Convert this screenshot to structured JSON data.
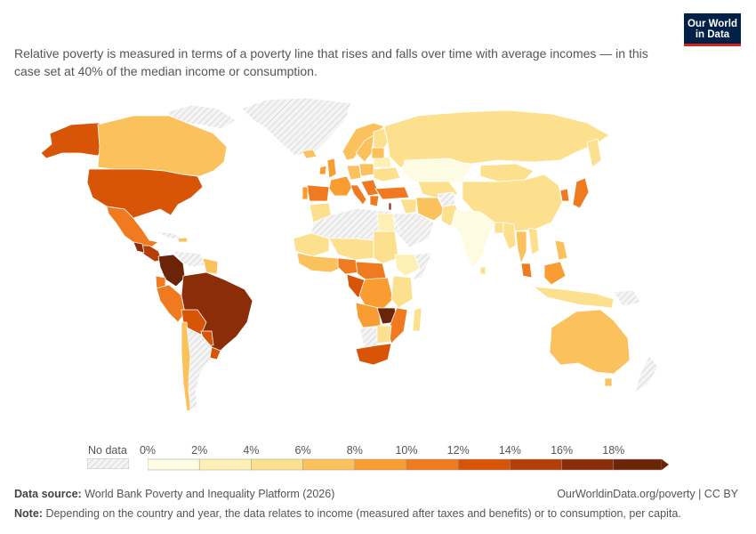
{
  "subtitle": "Relative poverty is measured in terms of a poverty line that rises and falls over time with average incomes — in this case set at 40% of the median income or consumption.",
  "logo": {
    "line1": "Our World",
    "line2": "in Data"
  },
  "legend": {
    "nodata_label": "No data",
    "ticks": [
      "0%",
      "2%",
      "4%",
      "6%",
      "8%",
      "10%",
      "12%",
      "14%",
      "16%",
      "18%"
    ],
    "colors": [
      "#fefbe3",
      "#fef0b4",
      "#fde08e",
      "#fbc15c",
      "#f99c32",
      "#ef7a1f",
      "#d85508",
      "#b43d08",
      "#8c2d09",
      "#6b2408"
    ]
  },
  "footer": {
    "source_label": "Data source:",
    "source_text": "World Bank Poverty and Inequality Platform (2026)",
    "link": "OurWorldinData.org/poverty | CC BY",
    "note_label": "Note:",
    "note_text": "Depending on the country and year, the data relates to income (measured after taxes and benefits) or to consumption, per capita."
  },
  "colors": {
    "nodata_hatch": "#d9d9d9",
    "border": "#ffffff",
    "brand": "#002147",
    "brand_accent": "#ce261e"
  }
}
